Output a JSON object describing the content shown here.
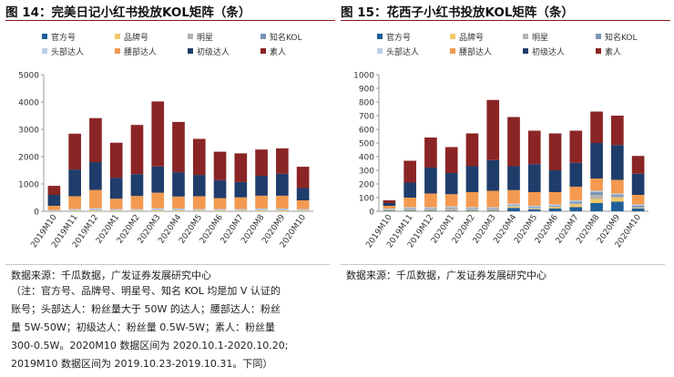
{
  "figures": [
    {
      "title": "图 14：完美日记小红书投放KOL矩阵（条）",
      "source": "数据来源：千瓜数据，广发证券发展研究中心"
    },
    {
      "title": "图 15：花西子小红书投放KOL矩阵（条）",
      "source": "数据来源：千瓜数据，广发证券发展研究中心"
    }
  ],
  "note_lines": [
    "（注：官方号、品牌号、明星号、知名 KOL 均是加 V 认证的",
    "账号；头部达人：粉丝量大于 50W 的达人；腰部达人：粉丝",
    "量 5W-50W；初级达人：粉丝量 0.5W-5W；素人：粉丝量",
    "300-0.5W。2020M10 数据区间为 2020.10.1-2020.10.20;",
    "2019M10 数据区间为 2019.10.23-2019.10.31。下同）"
  ],
  "legend": [
    {
      "name": "官方号",
      "color": "#1f5f99"
    },
    {
      "name": "品牌号",
      "color": "#f2c96b"
    },
    {
      "name": "明星",
      "color": "#b3b3b3"
    },
    {
      "name": "知名KOL",
      "color": "#7a94b8"
    },
    {
      "name": "头部达人",
      "color": "#b9cde5"
    },
    {
      "name": "腰部达人",
      "color": "#f39a50"
    },
    {
      "name": "初级达人",
      "color": "#1f3d6b"
    },
    {
      "name": "素人",
      "color": "#8b2525"
    }
  ],
  "chart_data": [
    {
      "type": "bar",
      "stacked": true,
      "title": "完美日记小红书投放KOL矩阵（条）",
      "categories": [
        "2019M10",
        "2019M11",
        "2019M12",
        "2020M1",
        "2020M2",
        "2020M3",
        "2020M4",
        "2020M5",
        "2020M6",
        "2020M7",
        "2020M8",
        "2020M9",
        "2020M10"
      ],
      "ylim": [
        0,
        5000
      ],
      "yticks": [
        0,
        1000,
        2000,
        3000,
        4000,
        5000
      ],
      "grid": false,
      "legend_position": "top",
      "series": [
        {
          "name": "官方号",
          "values": [
            0,
            0,
            0,
            0,
            0,
            0,
            0,
            0,
            0,
            0,
            0,
            0,
            0
          ]
        },
        {
          "name": "品牌号",
          "values": [
            10,
            20,
            30,
            20,
            20,
            30,
            30,
            20,
            20,
            20,
            30,
            30,
            20
          ]
        },
        {
          "name": "明星",
          "values": [
            5,
            10,
            10,
            10,
            10,
            10,
            10,
            10,
            10,
            10,
            10,
            10,
            10
          ]
        },
        {
          "name": "知名KOL",
          "values": [
            5,
            10,
            10,
            10,
            10,
            10,
            10,
            10,
            10,
            10,
            10,
            10,
            10
          ]
        },
        {
          "name": "头部达人",
          "values": [
            20,
            40,
            60,
            40,
            40,
            60,
            50,
            40,
            40,
            40,
            50,
            50,
            40
          ]
        },
        {
          "name": "腰部达人",
          "values": [
            160,
            470,
            670,
            380,
            480,
            570,
            440,
            470,
            400,
            430,
            470,
            470,
            320
          ]
        },
        {
          "name": "初级达人",
          "values": [
            400,
            980,
            1020,
            770,
            800,
            960,
            890,
            780,
            660,
            560,
            730,
            800,
            450
          ]
        },
        {
          "name": "素人",
          "values": [
            330,
            1310,
            1610,
            1280,
            1800,
            2380,
            1840,
            1320,
            1040,
            1050,
            960,
            930,
            780
          ]
        }
      ]
    },
    {
      "type": "bar",
      "stacked": true,
      "title": "花西子小红书投放KOL矩阵（条）",
      "categories": [
        "2019M10",
        "2019M11",
        "2019M12",
        "2020M1",
        "2020M2",
        "2020M3",
        "2020M4",
        "2020M5",
        "2020M6",
        "2020M7",
        "2020M8",
        "2020M9",
        "2020M10"
      ],
      "ylim": [
        0,
        1000
      ],
      "yticks": [
        0,
        100,
        200,
        300,
        400,
        500,
        600,
        700,
        800,
        900,
        1000
      ],
      "grid": false,
      "legend_position": "top",
      "series": [
        {
          "name": "官方号",
          "values": [
            5,
            5,
            5,
            5,
            5,
            5,
            25,
            15,
            20,
            30,
            60,
            70,
            20
          ]
        },
        {
          "name": "品牌号",
          "values": [
            5,
            5,
            5,
            5,
            5,
            5,
            10,
            5,
            10,
            20,
            30,
            30,
            5
          ]
        },
        {
          "name": "明星",
          "values": [
            2,
            5,
            5,
            10,
            5,
            5,
            5,
            5,
            5,
            10,
            30,
            10,
            5
          ]
        },
        {
          "name": "知名KOL",
          "values": [
            3,
            5,
            5,
            5,
            5,
            5,
            5,
            5,
            5,
            10,
            20,
            10,
            10
          ]
        },
        {
          "name": "头部达人",
          "values": [
            5,
            10,
            10,
            10,
            10,
            10,
            10,
            10,
            10,
            10,
            10,
            10,
            10
          ]
        },
        {
          "name": "腰部达人",
          "values": [
            20,
            70,
            100,
            90,
            110,
            120,
            100,
            100,
            90,
            100,
            90,
            100,
            70
          ]
        },
        {
          "name": "初级达人",
          "values": [
            20,
            110,
            190,
            155,
            190,
            225,
            175,
            205,
            160,
            175,
            260,
            255,
            155
          ]
        },
        {
          "name": "素人",
          "values": [
            20,
            160,
            220,
            190,
            240,
            440,
            360,
            245,
            270,
            235,
            230,
            215,
            130
          ]
        }
      ]
    }
  ]
}
